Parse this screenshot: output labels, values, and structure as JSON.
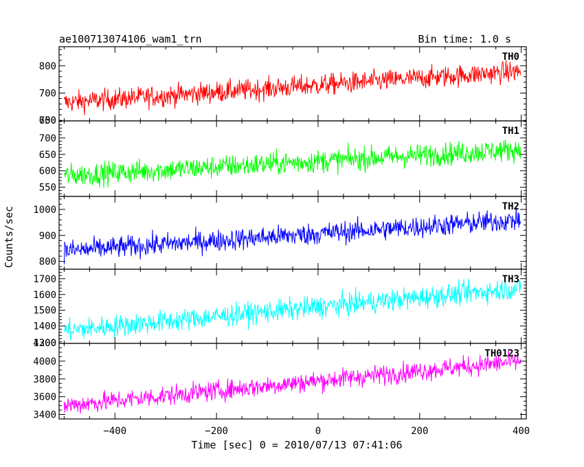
{
  "header": {
    "title": "ae100713074106_wam1_trn",
    "bin_time": "Bin time: 1.0 s"
  },
  "chart_data": {
    "type": "line",
    "xlabel": "Time [sec] 0 = 2010/07/13 07:41:06",
    "ylabel": "Counts/sec",
    "xlim": [
      -510,
      410
    ],
    "xticks": [
      -400,
      -200,
      0,
      200,
      400
    ],
    "xtick_labels": [
      "−400",
      "−200",
      "0",
      "200",
      "400"
    ],
    "x_start": -500,
    "x_end": 399,
    "x_step": 1,
    "grid": false,
    "panels": [
      {
        "label": "TH0",
        "color": "#ff0000",
        "ylim": [
          598,
          870
        ],
        "yticks": [
          700,
          800
        ],
        "ytick_labels": [
          "700",
          "800"
        ],
        "bottom_partial_label": "600",
        "trend_start": 665,
        "trend_end": 780,
        "noise": 28
      },
      {
        "label": "TH1",
        "color": "#00ff00",
        "ylim": [
          522,
          752
        ],
        "yticks": [
          550,
          600,
          650,
          700
        ],
        "ytick_labels": [
          "550",
          "600",
          "650",
          "700"
        ],
        "top_partial_label": "750",
        "trend_start": 585,
        "trend_end": 665,
        "noise": 25
      },
      {
        "label": "TH2",
        "color": "#0000ff",
        "ylim": [
          770,
          1050
        ],
        "yticks": [
          800,
          900,
          1000
        ],
        "ytick_labels": [
          "800",
          "900",
          "1000"
        ],
        "trend_start": 840,
        "trend_end": 960,
        "noise": 30
      },
      {
        "label": "TH3",
        "color": "#00ffff",
        "ylim": [
          1290,
          1760
        ],
        "yticks": [
          1400,
          1500,
          1600,
          1700
        ],
        "ytick_labels": [
          "1400",
          "1500",
          "1600",
          "1700"
        ],
        "bottom_partial_label": "1300",
        "trend_start": 1370,
        "trend_end": 1640,
        "noise": 50
      },
      {
        "label": "TH0123",
        "color": "#ff00ff",
        "ylim": [
          3350,
          4200
        ],
        "yticks": [
          3400,
          3600,
          3800,
          4000
        ],
        "ytick_labels": [
          "3400",
          "3600",
          "3800",
          "4000"
        ],
        "top_partial_label": "4200",
        "trend_start": 3500,
        "trend_end": 4000,
        "noise": 80
      }
    ]
  }
}
